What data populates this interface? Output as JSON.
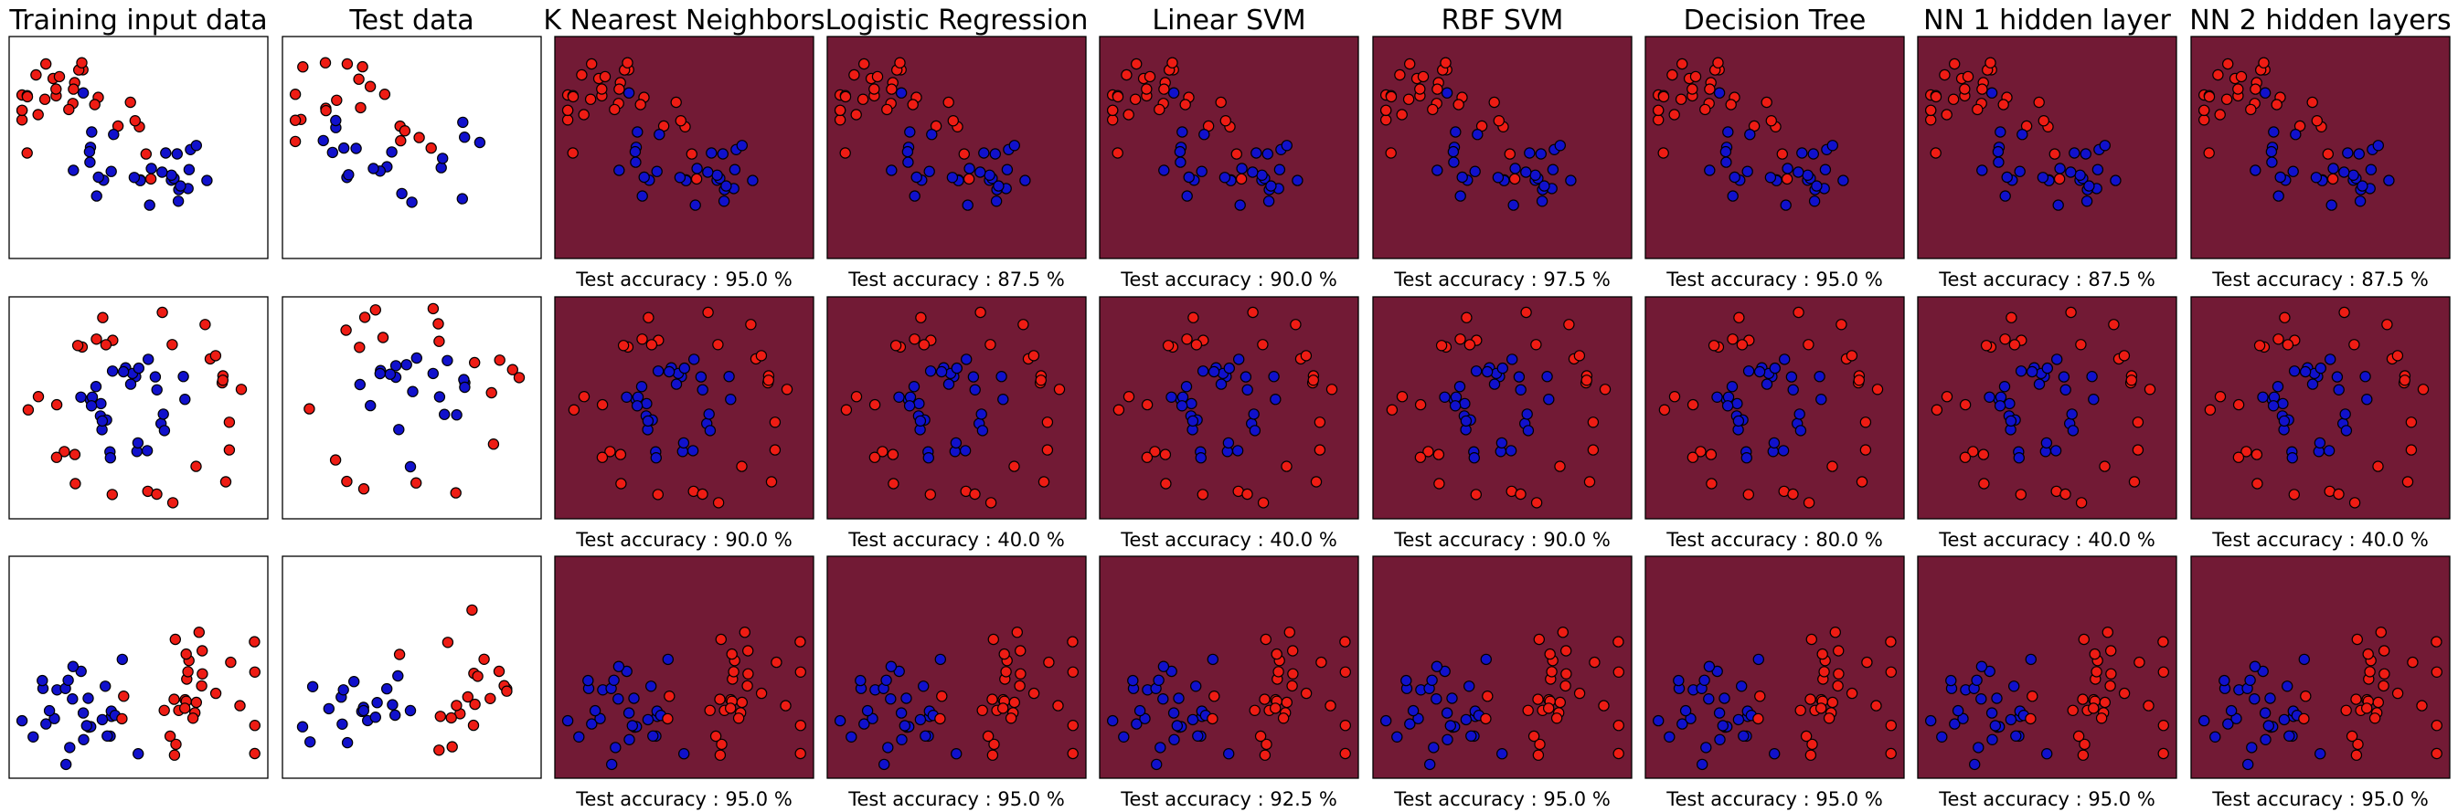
{
  "chart_data": {
    "type": "scatter",
    "column_titles": [
      "Training input data",
      "Test data",
      "K Nearest Neighbors",
      "Logistic Regression",
      "Linear SVM",
      "RBF SVM",
      "Decision Tree",
      "NN 1 hidden layer",
      "NN 2 hidden layers"
    ],
    "accuracy_prefix": "Test accuracy : ",
    "accuracy_suffix": " %",
    "rows": [
      {
        "dataset": "moons",
        "accuracies": [
          "95.0",
          "87.5",
          "90.0",
          "97.5",
          "95.0",
          "87.5",
          "87.5"
        ]
      },
      {
        "dataset": "circles",
        "accuracies": [
          "90.0",
          "40.0",
          "40.0",
          "90.0",
          "80.0",
          "40.0",
          "40.0"
        ]
      },
      {
        "dataset": "linear",
        "accuracies": [
          "95.0",
          "95.0",
          "92.5",
          "95.0",
          "95.0",
          "95.0",
          "95.0"
        ]
      }
    ],
    "class_colors": {
      "red": "#ee1c14",
      "blue": "#1111cc"
    },
    "region_colors": {
      "red": "#721a35",
      "blue": "#1e4a77"
    }
  }
}
